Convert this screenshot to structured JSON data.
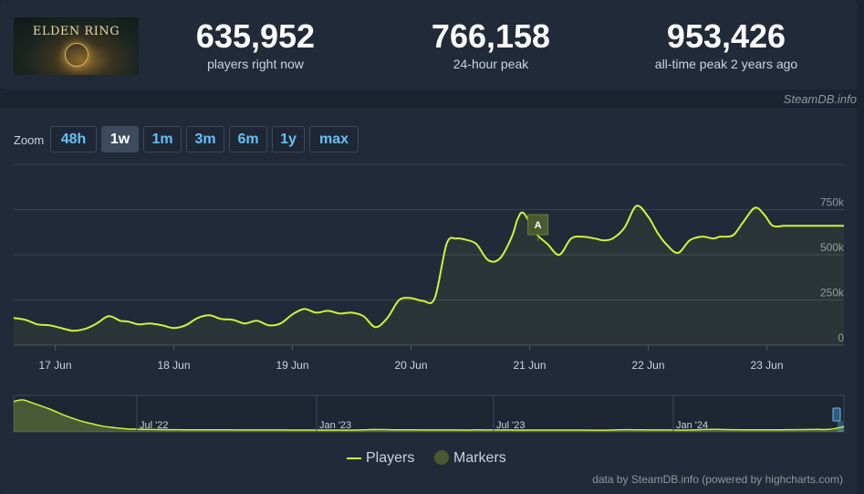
{
  "header": {
    "logo_text": "ELDEN RING",
    "stats": [
      {
        "value": "635,952",
        "label": "players right now"
      },
      {
        "value": "766,158",
        "label": "24-hour peak"
      },
      {
        "value": "953,426",
        "label": "all-time peak 2 years ago"
      }
    ],
    "brand": "SteamDB.info"
  },
  "zoom": {
    "label": "Zoom",
    "buttons": [
      "48h",
      "1w",
      "1m",
      "3m",
      "6m",
      "1y",
      "max"
    ],
    "active": "1w"
  },
  "chart_data": {
    "type": "line",
    "series": [
      {
        "name": "Players",
        "color": "#cef43a",
        "x": [
          16.65,
          16.75,
          16.85,
          16.95,
          17.05,
          17.15,
          17.25,
          17.35,
          17.45,
          17.55,
          17.62,
          17.7,
          17.8,
          17.9,
          18.0,
          18.1,
          18.2,
          18.3,
          18.4,
          18.5,
          18.6,
          18.7,
          18.8,
          18.9,
          19.0,
          19.1,
          19.2,
          19.3,
          19.4,
          19.5,
          19.6,
          19.7,
          19.8,
          19.9,
          20.0,
          20.1,
          20.2,
          20.3,
          20.38,
          20.45,
          20.55,
          20.65,
          20.75,
          20.85,
          20.9,
          20.95,
          21.05,
          21.15,
          21.25,
          21.35,
          21.45,
          21.55,
          21.62,
          21.7,
          21.8,
          21.9,
          22.0,
          22.08,
          22.15,
          22.25,
          22.35,
          22.45,
          22.55,
          22.6,
          22.65,
          22.72,
          22.8,
          22.9,
          22.98,
          23.05,
          23.15,
          23.25,
          23.35,
          23.45,
          23.55,
          23.6,
          23.65
        ],
        "values": [
          150000,
          140000,
          115000,
          110000,
          95000,
          80000,
          90000,
          120000,
          160000,
          135000,
          130000,
          115000,
          120000,
          110000,
          95000,
          110000,
          150000,
          165000,
          145000,
          140000,
          120000,
          135000,
          110000,
          120000,
          170000,
          200000,
          180000,
          190000,
          175000,
          180000,
          160000,
          100000,
          150000,
          250000,
          260000,
          245000,
          260000,
          560000,
          590000,
          585000,
          560000,
          470000,
          480000,
          600000,
          700000,
          730000,
          620000,
          560000,
          500000,
          590000,
          600000,
          590000,
          580000,
          590000,
          650000,
          770000,
          710000,
          620000,
          560000,
          510000,
          580000,
          600000,
          590000,
          600000,
          600000,
          610000,
          680000,
          760000,
          720000,
          660000,
          660000,
          660000,
          660000,
          660000,
          660000,
          660000,
          660000
        ]
      }
    ],
    "x_ticks": [
      "17 Jun",
      "18 Jun",
      "19 Jun",
      "20 Jun",
      "21 Jun",
      "22 Jun",
      "23 Jun"
    ],
    "y_ticks": [
      "0",
      "250k",
      "500k",
      "750k"
    ],
    "ylim": [
      0,
      1000000
    ],
    "grid": true,
    "markers": [
      {
        "label": "A",
        "x": 21.07
      }
    ],
    "navigator": {
      "labels": [
        "Jul '22",
        "Jan '23",
        "Jul '23",
        "Jan '24"
      ],
      "values": [
        900000,
        950000,
        870000,
        780000,
        690000,
        580000,
        470000,
        380000,
        300000,
        240000,
        180000,
        140000,
        110000,
        90000,
        80000,
        75000,
        70000,
        68000,
        66000,
        64000,
        62000,
        61000,
        60000,
        60000,
        60000,
        59000,
        58000,
        58000,
        57000,
        57000,
        56000,
        56000,
        55000,
        55000,
        55000,
        54000,
        54000,
        54000,
        53000,
        53000,
        60000,
        70000,
        68000,
        64000,
        62000,
        60000,
        59000,
        58000,
        58000,
        57000,
        56000,
        56000,
        55000,
        60000,
        58000,
        57000,
        56000,
        56000,
        55000,
        55000,
        55000,
        54000,
        54000,
        54000,
        53000,
        53000,
        52000,
        52000,
        52000,
        60000,
        65000,
        62000,
        60000,
        58000,
        56000,
        56000,
        55000,
        55000,
        60000,
        70000,
        75000,
        70000,
        66000,
        64000,
        62000,
        62000,
        61000,
        60000,
        62000,
        66000,
        68000,
        70000,
        72000,
        70000,
        100000,
        160000
      ]
    }
  },
  "legend": {
    "players": "Players",
    "markers": "Markers"
  },
  "credits": "data by SteamDB.info (powered by highcharts.com)"
}
